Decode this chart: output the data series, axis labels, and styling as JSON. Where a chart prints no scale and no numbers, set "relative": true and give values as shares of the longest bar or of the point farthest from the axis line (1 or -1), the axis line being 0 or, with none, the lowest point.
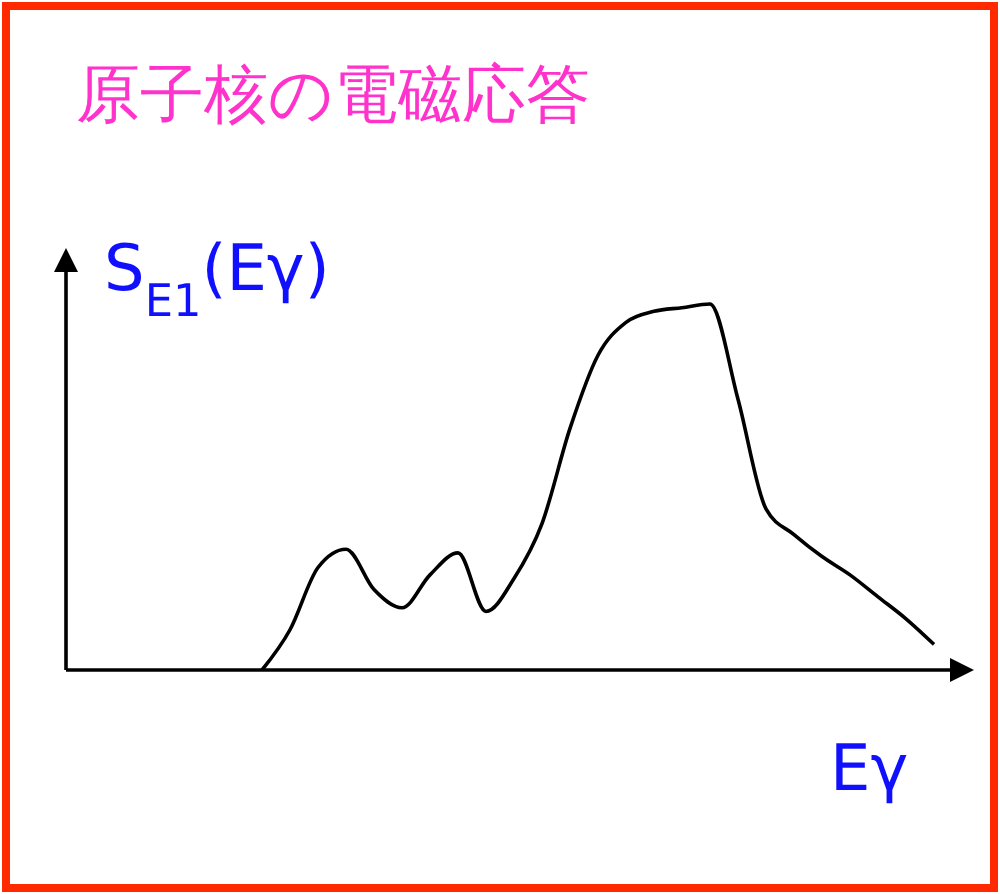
{
  "chart_data": {
    "type": "line",
    "title": "原子核の電磁応答",
    "ylabel": "S$_{E1}$(Eγ)",
    "xlabel": "Eγ",
    "relative": true,
    "categories": [
      null,
      null,
      null,
      null,
      null,
      null,
      null,
      null,
      null,
      null,
      null,
      null,
      null,
      null,
      null,
      null,
      null,
      null,
      null,
      null,
      null,
      null,
      null,
      null,
      null,
      null,
      null,
      null,
      null,
      null,
      null,
      null
    ],
    "series": [
      {
        "color": "#000000",
        "values": [
          null,
          null,
          null,
          null,
          null,
          null,
          null,
          0,
          0.11,
          0.28,
          0.33,
          0.22,
          0.17,
          0.26,
          0.32,
          0.16,
          0.25,
          0.4,
          0.66,
          0.86,
          0.95,
          0.98,
          0.99,
          1,
          0.74,
          0.44,
          0.37,
          0.31,
          0.26,
          0.2,
          0.14,
          0.07
        ]
      }
    ],
    "grid": false
  }
}
